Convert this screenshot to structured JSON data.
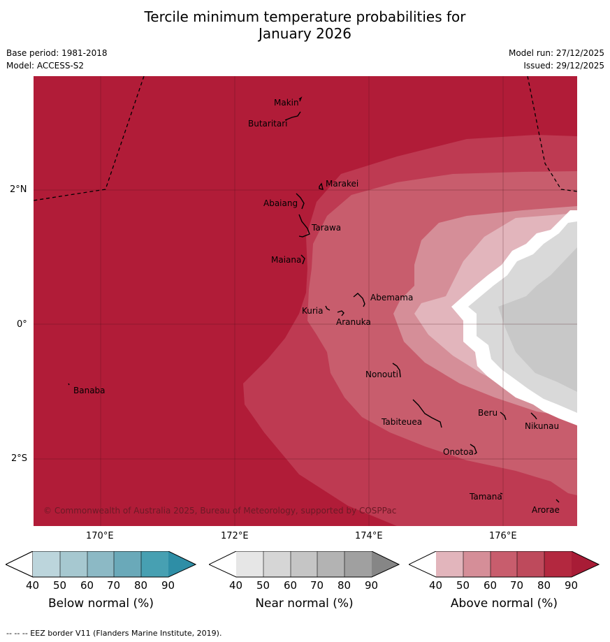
{
  "header": {
    "title_line1": "Tercile minimum temperature probabilities for",
    "title_line2": "January 2026",
    "base_period": "Base period: 1981-2018",
    "model": "Model: ACCESS-S2",
    "model_run": "Model run: 27/12/2025",
    "issued": "Issued: 29/12/2025"
  },
  "axes": {
    "lat_labels": [
      "2°N",
      "0°",
      "2°S"
    ],
    "lon_labels": [
      "170°E",
      "172°E",
      "174°E",
      "176°E"
    ]
  },
  "map": {
    "places": [
      "Makin",
      "Butaritari",
      "Marakei",
      "Abaiang",
      "Tarawa",
      "Maiana",
      "Abemama",
      "Kuria",
      "Aranuka",
      "Banaba",
      "Nonouti",
      "Tabiteuea",
      "Beru",
      "Nikunau",
      "Onotoa",
      "Tamana",
      "Arorae"
    ],
    "copyright": "© Commonwealth of Australia 2025, Bureau of Meteorology, supported by COSPPac",
    "colors": {
      "above_90": "#b11c38",
      "above_80": "#be3a52",
      "above_70": "#c85d6d",
      "above_60": "#d58e98",
      "above_50": "#e2b5bc",
      "near_60": "#d9d9d9",
      "near_70": "#c8c8c8"
    }
  },
  "colorbars": [
    {
      "label": "Below normal (%)",
      "ticks": [
        "40",
        "50",
        "60",
        "70",
        "80",
        "90"
      ],
      "colors": [
        "#ffffff",
        "#bcd5dc",
        "#a6c8d0",
        "#8cb9c5",
        "#6aa9b9",
        "#47a0b2",
        "#2e8ea6"
      ]
    },
    {
      "label": "Near normal (%)",
      "ticks": [
        "40",
        "50",
        "60",
        "70",
        "80",
        "90"
      ],
      "colors": [
        "#ffffff",
        "#e6e6e6",
        "#d6d6d6",
        "#c5c5c5",
        "#b3b3b3",
        "#a0a0a0",
        "#868686"
      ]
    },
    {
      "label": "Above normal (%)",
      "ticks": [
        "40",
        "50",
        "60",
        "70",
        "80",
        "90"
      ],
      "colors": [
        "#ffffff",
        "#e2b5bc",
        "#d58e98",
        "#c85d6d",
        "#be4a5c",
        "#b3283f",
        "#a81c36"
      ]
    }
  ],
  "footer": "--  --  -- EEZ border V11 (Flanders Marine Institute, 2019)."
}
